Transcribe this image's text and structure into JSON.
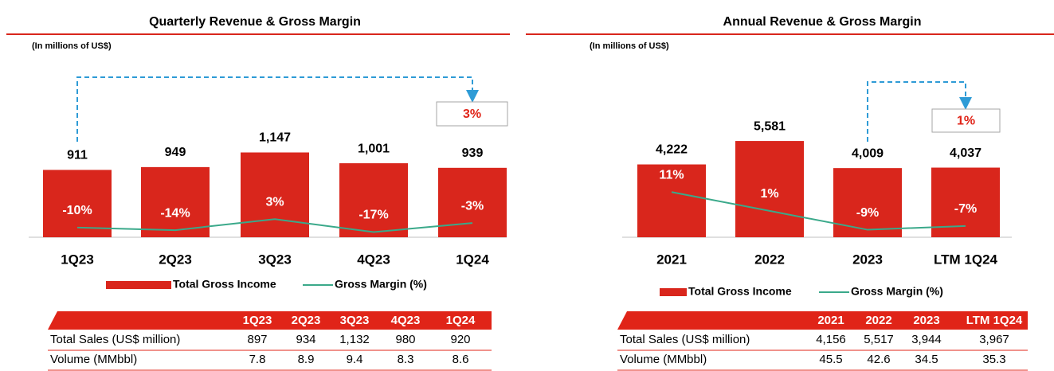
{
  "chart_data": [
    {
      "type": "bar",
      "title": "Quarterly Revenue & Gross Margin",
      "subtitle": "(In millions of US$)",
      "categories": [
        "1Q23",
        "2Q23",
        "3Q23",
        "4Q23",
        "1Q24"
      ],
      "series": [
        {
          "name": "Total Gross Income",
          "color": "#d9261c",
          "values": [
            911,
            949,
            1147,
            1001,
            939
          ],
          "value_labels": [
            "911",
            "949",
            "1,147",
            "1,001",
            "939"
          ]
        },
        {
          "name": "Gross Margin (%)",
          "color": "#3aa98a",
          "axis": "y2",
          "values": [
            -10,
            -14,
            3,
            -17,
            -3
          ],
          "value_labels": [
            "-10%",
            "-14%",
            "3%",
            "-17%",
            "-3%"
          ]
        }
      ],
      "ylim": [
        0,
        1400
      ],
      "y2lim": [
        -25,
        135
      ],
      "annotation": "3%"
    },
    {
      "type": "bar",
      "title": "Annual Revenue & Gross Margin",
      "subtitle": "(In millions of US$)",
      "categories": [
        "2021",
        "2022",
        "2023",
        "LTM 1Q24"
      ],
      "series": [
        {
          "name": "Total Gross Income",
          "color": "#d9261c",
          "values": [
            4222,
            5581,
            4009,
            4037
          ],
          "value_labels": [
            "4,222",
            "5,581",
            "4,009",
            "4,037"
          ]
        },
        {
          "name": "Gross Margin (%)",
          "color": "#3aa98a",
          "axis": "y2",
          "values": [
            11,
            1,
            -9,
            -7
          ],
          "value_labels": [
            "11%",
            "1%",
            "-9%",
            "-7%"
          ]
        }
      ],
      "ylim": [
        0,
        6000
      ],
      "y2lim": [
        -13,
        42
      ],
      "annotation": "1%"
    }
  ],
  "tables": [
    {
      "columns": [
        "1Q23",
        "2Q23",
        "3Q23",
        "4Q23",
        "1Q24"
      ],
      "rows": [
        {
          "label": "Total Sales (US$ million)",
          "values": [
            897,
            934,
            "1,132",
            980,
            920
          ]
        },
        {
          "label": "Volume (MMbbl)",
          "values": [
            7.8,
            8.9,
            9.4,
            8.3,
            8.6
          ]
        }
      ]
    },
    {
      "columns": [
        "2021",
        "2022",
        "2023",
        "LTM 1Q24"
      ],
      "rows": [
        {
          "label": "Total Sales (US$ million)",
          "values": [
            "4,156",
            "5,517",
            "3,944",
            "3,967"
          ]
        },
        {
          "label": "Volume (MMbbl)",
          "values": [
            45.5,
            42.6,
            34.5,
            35.3
          ]
        }
      ]
    }
  ]
}
